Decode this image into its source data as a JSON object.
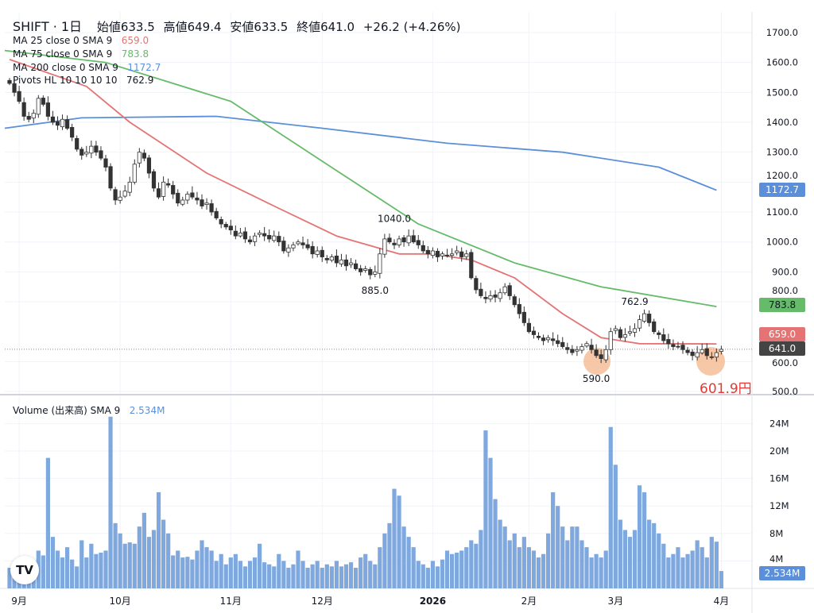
{
  "header": {
    "symbol": "SHIFT · 1日",
    "open_label": "始値",
    "open": "633.5",
    "high_label": "高値",
    "high": "649.4",
    "low_label": "安値",
    "low": "633.5",
    "close_label": "終値",
    "close": "641.0",
    "change": "+26.2 (+4.26%)"
  },
  "indicators": [
    {
      "label": "MA 25 close 0 SMA 9",
      "value": "659.0",
      "color": "#e57373"
    },
    {
      "label": "MA 75 close 0 SMA 9",
      "value": "783.8",
      "color": "#66bb6a"
    },
    {
      "label": "MA 200 close 0 SMA 9",
      "value": "1172.7",
      "color": "#5b8fd9"
    },
    {
      "label": "Pivots HL 10 10 10 10",
      "value": "762.9",
      "color": "#131722"
    }
  ],
  "volume_legend": {
    "label": "Volume (出来高) SMA 9",
    "value": "2.534M"
  },
  "price_tags": {
    "ma200": "1172.7",
    "ma75": "783.8",
    "ma25": "659.0",
    "last": "641.0",
    "volume": "2.534M"
  },
  "annotation": "601.9円",
  "logo": "TV",
  "chart_data": {
    "type": "candlestick",
    "price_axis": {
      "min": 500,
      "max": 1700,
      "ticks": [
        "1700.0",
        "1600.0",
        "1500.0",
        "1400.0",
        "1300.0",
        "1200.0",
        "1100.0",
        "1000.0",
        "900.0",
        "800.0",
        "600.0",
        "500.0"
      ]
    },
    "volume_axis": {
      "ticks": [
        "24M",
        "20M",
        "16M",
        "12M",
        "8M",
        "4M"
      ]
    },
    "x_ticks": [
      {
        "label": "9月",
        "bar": 2
      },
      {
        "label": "10月",
        "bar": 23
      },
      {
        "label": "11月",
        "bar": 46
      },
      {
        "label": "12月",
        "bar": 65
      },
      {
        "label": "2026",
        "bar": 88
      },
      {
        "label": "2月",
        "bar": 108
      },
      {
        "label": "3月",
        "bar": 126
      },
      {
        "label": "4月",
        "bar": 148
      }
    ],
    "closes": [
      1530,
      1500,
      1470,
      1420,
      1410,
      1430,
      1480,
      1460,
      1420,
      1400,
      1390,
      1410,
      1380,
      1350,
      1310,
      1290,
      1300,
      1320,
      1300,
      1280,
      1250,
      1180,
      1140,
      1150,
      1170,
      1200,
      1260,
      1300,
      1280,
      1230,
      1180,
      1150,
      1200,
      1190,
      1160,
      1130,
      1140,
      1160,
      1150,
      1140,
      1120,
      1130,
      1100,
      1080,
      1060,
      1050,
      1040,
      1020,
      1030,
      1010,
      1000,
      1020,
      1030,
      1020,
      1010,
      1020,
      1000,
      970,
      980,
      990,
      1000,
      990,
      980,
      960,
      970,
      950,
      940,
      950,
      930,
      940,
      920,
      930,
      910,
      900,
      910,
      890,
      900,
      960,
      1010,
      1000,
      990,
      1010,
      1000,
      1020,
      1000,
      990,
      970,
      960,
      970,
      950,
      960,
      955,
      960,
      970,
      950,
      960,
      880,
      840,
      820,
      810,
      820,
      815,
      830,
      850,
      820,
      790,
      760,
      730,
      700,
      690,
      680,
      670,
      680,
      670,
      660,
      650,
      640,
      630,
      640,
      650,
      660,
      640,
      620,
      610,
      640,
      700,
      710,
      680,
      690,
      700,
      710,
      740,
      760,
      730,
      700,
      690,
      670,
      660,
      650,
      650,
      640,
      630,
      620,
      630,
      640,
      620,
      615,
      630,
      641
    ],
    "volumes": [
      3,
      3,
      2.5,
      3,
      3.5,
      4,
      5.5,
      4.8,
      19,
      7.5,
      5.5,
      4.5,
      6,
      4.2,
      3.2,
      7,
      4.5,
      6.5,
      5,
      5.2,
      5.5,
      25,
      9.5,
      8,
      6.5,
      6.7,
      6.5,
      9,
      11,
      7.5,
      8.5,
      14,
      10,
      8,
      4.8,
      5.5,
      4.5,
      4.6,
      4.2,
      5.5,
      7,
      6,
      5.5,
      4,
      5,
      3.5,
      4.5,
      5,
      4,
      3.2,
      4,
      4.5,
      6.5,
      3.8,
      3.5,
      3.2,
      5,
      4,
      3,
      3.5,
      5.5,
      4,
      3,
      3.5,
      4,
      3,
      3.5,
      3.2,
      4,
      3.2,
      3.5,
      3.8,
      3,
      4.5,
      5,
      4,
      3.5,
      6,
      8,
      9.5,
      14.5,
      13.5,
      9,
      7.5,
      6,
      4,
      3.5,
      3,
      4,
      3.2,
      4.2,
      5.5,
      5,
      5.2,
      5.5,
      6,
      7,
      6.5,
      8.5,
      23,
      19,
      13,
      10,
      9,
      7,
      8,
      6,
      7.5,
      6,
      5.5,
      4.5,
      5,
      8,
      14,
      12,
      9,
      7,
      9,
      9,
      7,
      6,
      4.5,
      5,
      4.5,
      5.5,
      23.5,
      18,
      10,
      8.5,
      7.5,
      8.5,
      15,
      14,
      10,
      9.5,
      8,
      6.5,
      4.5,
      5,
      6,
      4.5,
      5,
      5.5,
      7,
      6,
      4.5,
      7.5,
      6.8,
      2.53
    ],
    "ma25": [
      [
        0,
        1610
      ],
      [
        16,
        1520
      ],
      [
        25,
        1400
      ],
      [
        41,
        1230
      ],
      [
        55,
        1120
      ],
      [
        68,
        1020
      ],
      [
        81,
        960
      ],
      [
        88,
        960
      ],
      [
        96,
        940
      ],
      [
        105,
        880
      ],
      [
        115,
        760
      ],
      [
        123,
        680
      ],
      [
        131,
        660
      ],
      [
        147,
        659
      ]
    ],
    "ma75": [
      [
        -1,
        1640
      ],
      [
        20,
        1600
      ],
      [
        46,
        1470
      ],
      [
        65,
        1270
      ],
      [
        85,
        1060
      ],
      [
        105,
        930
      ],
      [
        123,
        850
      ],
      [
        147,
        783.8
      ]
    ],
    "ma200": [
      [
        -1,
        1380
      ],
      [
        15,
        1415
      ],
      [
        43,
        1420
      ],
      [
        65,
        1380
      ],
      [
        91,
        1330
      ],
      [
        115,
        1300
      ],
      [
        135,
        1250
      ],
      [
        147,
        1172.7
      ]
    ],
    "pivots": [
      {
        "label": "1040.0",
        "bar": 80,
        "price": 1040,
        "pos": "above"
      },
      {
        "label": "885.0",
        "bar": 76,
        "price": 885,
        "pos": "below"
      },
      {
        "label": "762.9",
        "bar": 130,
        "price": 762.9,
        "pos": "above"
      },
      {
        "label": "590.0",
        "bar": 122,
        "price": 590,
        "pos": "below"
      }
    ],
    "last_price": 641.0
  }
}
